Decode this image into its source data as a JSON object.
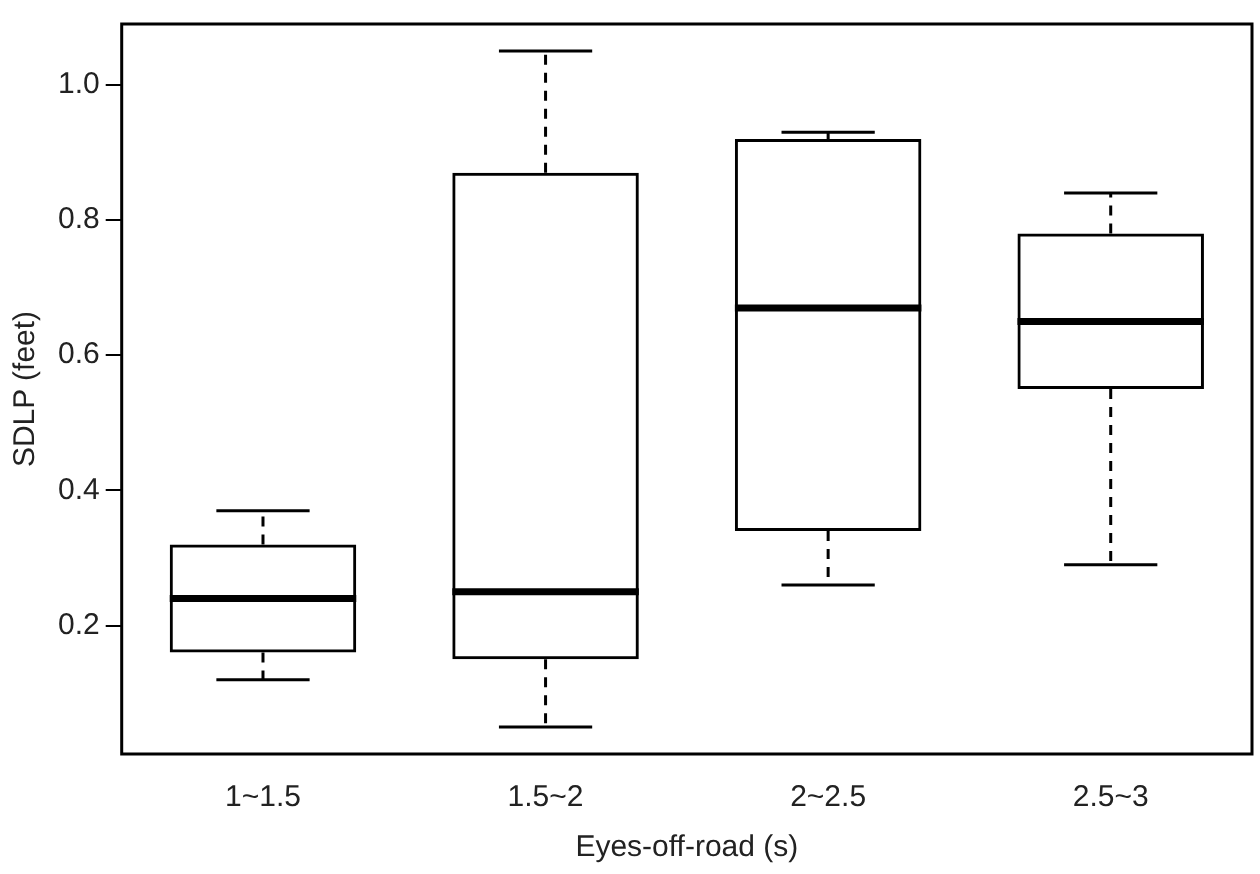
{
  "chart_data": {
    "type": "box",
    "xlabel": "Eyes-off-road (s)",
    "ylabel": "SDLP (feet)",
    "categories": [
      "1~1.5",
      "1.5~2",
      "2~2.5",
      "2.5~3"
    ],
    "boxes": [
      {
        "low": 0.12,
        "q1": 0.16,
        "median": 0.24,
        "q3": 0.32,
        "high": 0.37
      },
      {
        "low": 0.05,
        "q1": 0.15,
        "median": 0.25,
        "q3": 0.87,
        "high": 1.05
      },
      {
        "low": 0.26,
        "q1": 0.34,
        "median": 0.67,
        "q3": 0.92,
        "high": 0.93
      },
      {
        "low": 0.29,
        "q1": 0.55,
        "median": 0.65,
        "q3": 0.78,
        "high": 0.84
      }
    ],
    "color": "#000000",
    "ylim": [
      0.01,
      1.09
    ],
    "yticks": [
      0.2,
      0.4,
      0.6,
      0.8,
      {
        "value": 1,
        "label": "1.0"
      }
    ],
    "grid": false
  }
}
